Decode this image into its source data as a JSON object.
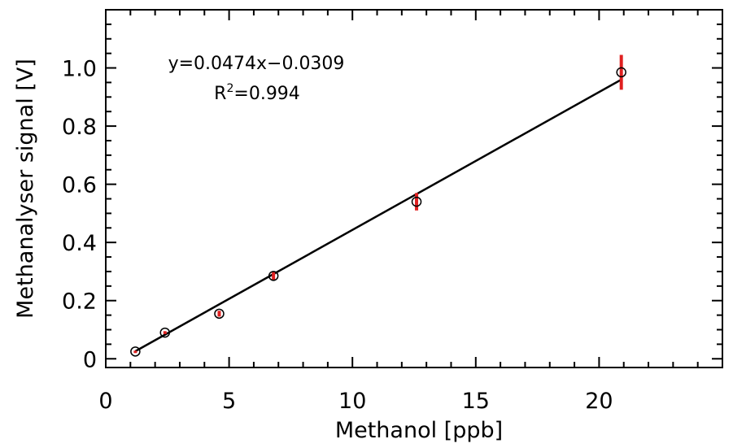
{
  "chart_data": {
    "type": "scatter",
    "xlabel": "Methanol [ppb]",
    "ylabel": "Methanalyser signal [V]",
    "xlim": [
      0,
      25
    ],
    "ylim": [
      -0.03,
      1.2
    ],
    "x_major_ticks": [
      0,
      5,
      10,
      15,
      20
    ],
    "x_tick_labels": [
      "0",
      "5",
      "10",
      "15",
      "20"
    ],
    "x_minor_step": 1,
    "y_major_ticks": [
      0,
      0.2,
      0.4,
      0.6,
      0.8,
      1.0
    ],
    "y_tick_labels": [
      "0",
      "0.2",
      "0.4",
      "0.6",
      "0.8",
      "1.0"
    ],
    "y_minor_step": 0.05,
    "grid": false,
    "series": [
      {
        "marker": "open-circle",
        "points": [
          {
            "x": 1.2,
            "y": 0.025,
            "err": 0.003
          },
          {
            "x": 2.4,
            "y": 0.09,
            "err": 0.005
          },
          {
            "x": 4.6,
            "y": 0.155,
            "err": 0.01
          },
          {
            "x": 6.8,
            "y": 0.285,
            "err": 0.015
          },
          {
            "x": 12.6,
            "y": 0.54,
            "err": 0.03
          },
          {
            "x": 20.9,
            "y": 0.985,
            "err": 0.06
          }
        ],
        "error_color": "#e02020",
        "marker_color": "#000000"
      }
    ],
    "fit": {
      "slope": 0.0474,
      "intercept": -0.0309,
      "x_range": [
        1.2,
        20.9
      ],
      "color": "#000000"
    },
    "annotations": {
      "equation": "y=0.0474x−0.0309",
      "r2_prefix": "R",
      "r2_sup": "2",
      "r2_value": "=0.994"
    }
  }
}
